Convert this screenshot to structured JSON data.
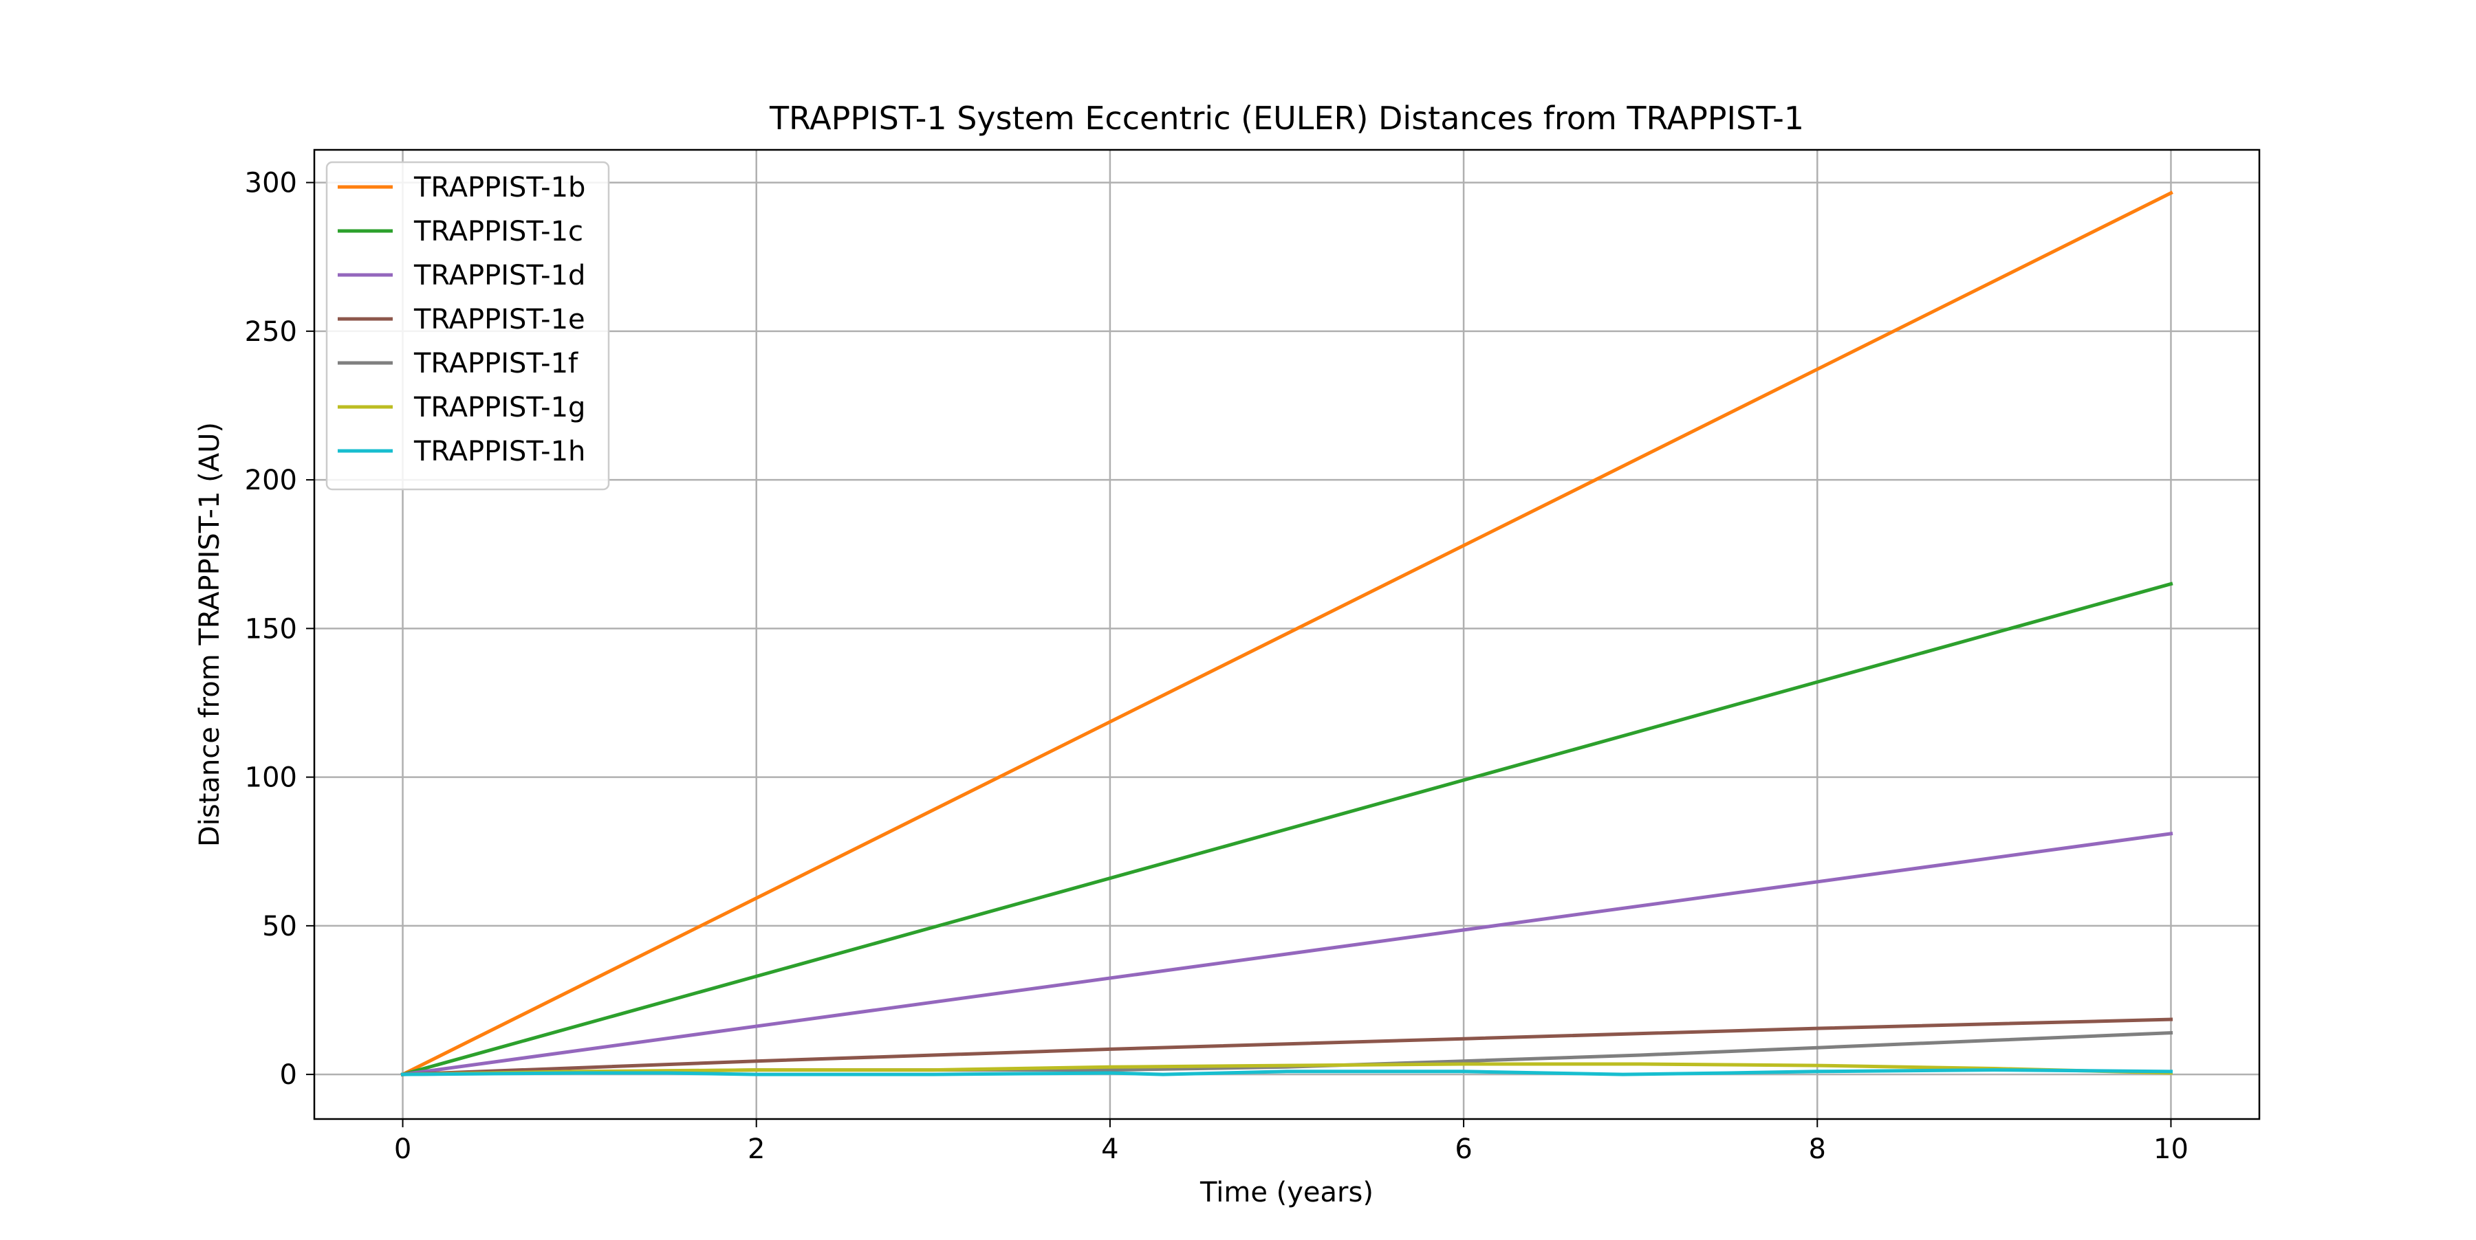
{
  "chart_data": {
    "type": "line",
    "title": "TRAPPIST-1 System Eccentric (EULER) Distances from TRAPPIST-1",
    "xlabel": "Time (years)",
    "ylabel": "Distance from TRAPPIST-1 (AU)",
    "xlim": [
      -0.5,
      10.5
    ],
    "ylim": [
      -15,
      311
    ],
    "xticks": [
      0,
      2,
      4,
      6,
      8,
      10
    ],
    "yticks": [
      0,
      50,
      100,
      150,
      200,
      250,
      300
    ],
    "grid": true,
    "legend_position": "upper left",
    "series": [
      {
        "name": "TRAPPIST-1b",
        "color": "#ff7f0e",
        "x": [
          0,
          10
        ],
        "y": [
          0,
          296.5
        ]
      },
      {
        "name": "TRAPPIST-1c",
        "color": "#2ca02c",
        "x": [
          0,
          10
        ],
        "y": [
          0,
          165
        ]
      },
      {
        "name": "TRAPPIST-1d",
        "color": "#9467bd",
        "x": [
          0,
          10
        ],
        "y": [
          0,
          81
        ]
      },
      {
        "name": "TRAPPIST-1e",
        "color": "#8c564b",
        "x": [
          0,
          2,
          4,
          6,
          8,
          10
        ],
        "y": [
          0,
          4.5,
          8.5,
          12,
          15.5,
          18.5
        ]
      },
      {
        "name": "TRAPPIST-1f",
        "color": "#7f7f7f",
        "x": [
          0,
          2,
          4,
          5,
          6,
          7,
          8,
          9,
          10
        ],
        "y": [
          0,
          1.5,
          1.5,
          2.5,
          4.5,
          6.5,
          9,
          11.5,
          14
        ]
      },
      {
        "name": "TRAPPIST-1g",
        "color": "#bcbd22",
        "x": [
          0,
          1,
          2,
          3,
          4,
          5,
          6,
          7,
          8,
          9,
          10
        ],
        "y": [
          0,
          1,
          1.5,
          1.5,
          2.5,
          3,
          3.5,
          3.5,
          3,
          2,
          0.5
        ]
      },
      {
        "name": "TRAPPIST-1h",
        "color": "#17becf",
        "x": [
          0,
          1,
          1.5,
          2,
          3,
          4,
          4.3,
          5,
          6,
          6.9,
          7.5,
          8,
          9,
          10
        ],
        "y": [
          0,
          0.5,
          0.5,
          0,
          0,
          0.5,
          0,
          1,
          1,
          0,
          0.5,
          1,
          1.5,
          1
        ]
      }
    ]
  }
}
